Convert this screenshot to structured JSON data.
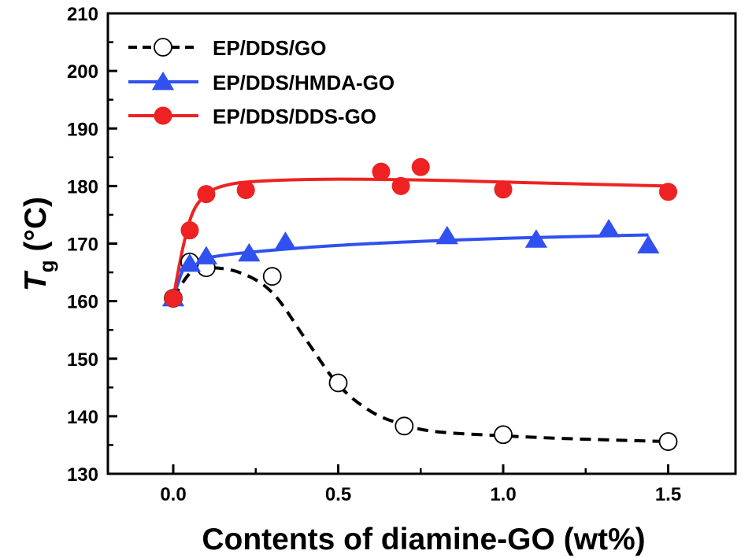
{
  "chart_data": {
    "type": "scatter",
    "xlabel": "Contents of diamine-GO (wt%)",
    "ylabel_main": "T",
    "ylabel_sub": "g",
    "ylabel_unit": " (°C)",
    "xlim": [
      -0.2,
      1.7
    ],
    "ylim": [
      130,
      210
    ],
    "x_ticks": [
      "0.0",
      "0.5",
      "1.0",
      "1.5"
    ],
    "x_tick_values": [
      0,
      0.5,
      1.0,
      1.5
    ],
    "y_ticks": [
      "130",
      "140",
      "150",
      "160",
      "170",
      "180",
      "190",
      "200",
      "210"
    ],
    "y_tick_values": [
      130,
      140,
      150,
      160,
      170,
      180,
      190,
      200,
      210
    ],
    "legend_position": "top-left",
    "grid": false,
    "series": [
      {
        "name": "EP/DDS/GO",
        "marker": "open-circle",
        "line_style": "dashed",
        "color": "#000000",
        "points": [
          [
            0,
            160.5
          ],
          [
            0.05,
            166.8
          ],
          [
            0.1,
            165.8
          ],
          [
            0.3,
            164.3
          ],
          [
            0.5,
            145.8
          ],
          [
            0.7,
            138.3
          ],
          [
            1.0,
            136.8
          ],
          [
            1.5,
            135.6
          ]
        ],
        "fit": [
          [
            0,
            160.5
          ],
          [
            0.05,
            164.8
          ],
          [
            0.1,
            165.8
          ],
          [
            0.2,
            165
          ],
          [
            0.3,
            161.5
          ],
          [
            0.4,
            153.5
          ],
          [
            0.5,
            145.5
          ],
          [
            0.6,
            140.8
          ],
          [
            0.7,
            138.5
          ],
          [
            0.8,
            137.3
          ],
          [
            1.0,
            136.6
          ],
          [
            1.2,
            136.1
          ],
          [
            1.5,
            135.6
          ]
        ]
      },
      {
        "name": "EP/DDS/HMDA-GO",
        "marker": "filled-triangle",
        "line_style": "solid",
        "color": "#3050f0",
        "points": [
          [
            0,
            160.5
          ],
          [
            0.05,
            166.5
          ],
          [
            0.1,
            167.8
          ],
          [
            0.23,
            168.3
          ],
          [
            0.34,
            170.3
          ],
          [
            0.83,
            171.3
          ],
          [
            1.1,
            170.7
          ],
          [
            1.32,
            172.5
          ],
          [
            1.44,
            169.7
          ]
        ],
        "fit": [
          [
            0,
            160.5
          ],
          [
            0.03,
            165.5
          ],
          [
            0.06,
            166.8
          ],
          [
            0.1,
            167.5
          ],
          [
            0.2,
            168.3
          ],
          [
            0.4,
            169.3
          ],
          [
            0.6,
            170.0
          ],
          [
            0.8,
            170.5
          ],
          [
            1.0,
            170.9
          ],
          [
            1.2,
            171.2
          ],
          [
            1.44,
            171.5
          ]
        ]
      },
      {
        "name": "EP/DDS/DDS-GO",
        "marker": "filled-circle",
        "line_style": "solid",
        "color": "#ee2222",
        "points": [
          [
            0,
            160.5
          ],
          [
            0.05,
            172.3
          ],
          [
            0.1,
            178.6
          ],
          [
            0.22,
            179.3
          ],
          [
            0.63,
            182.5
          ],
          [
            0.69,
            180.0
          ],
          [
            0.75,
            183.3
          ],
          [
            1.0,
            179.4
          ],
          [
            1.5,
            179.0
          ]
        ],
        "fit": [
          [
            0,
            160.5
          ],
          [
            0.03,
            169.5
          ],
          [
            0.06,
            175.5
          ],
          [
            0.1,
            178.5
          ],
          [
            0.15,
            180.0
          ],
          [
            0.25,
            180.8
          ],
          [
            0.5,
            181.2
          ],
          [
            0.8,
            181.0
          ],
          [
            1.0,
            180.7
          ],
          [
            1.2,
            180.4
          ],
          [
            1.5,
            180.0
          ]
        ]
      }
    ]
  }
}
